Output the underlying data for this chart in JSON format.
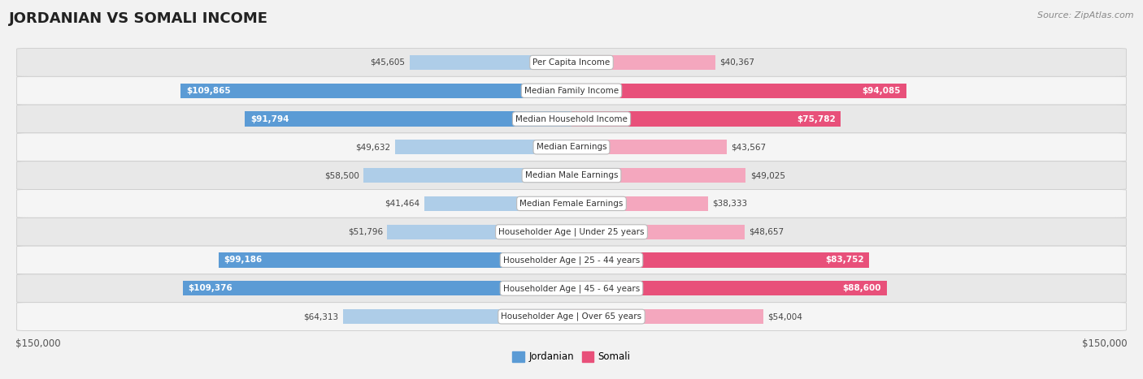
{
  "title": "JORDANIAN VS SOMALI INCOME",
  "source": "Source: ZipAtlas.com",
  "categories": [
    "Per Capita Income",
    "Median Family Income",
    "Median Household Income",
    "Median Earnings",
    "Median Male Earnings",
    "Median Female Earnings",
    "Householder Age | Under 25 years",
    "Householder Age | 25 - 44 years",
    "Householder Age | 45 - 64 years",
    "Householder Age | Over 65 years"
  ],
  "jordanian_values": [
    45605,
    109865,
    91794,
    49632,
    58500,
    41464,
    51796,
    99186,
    109376,
    64313
  ],
  "somali_values": [
    40367,
    94085,
    75782,
    43567,
    49025,
    38333,
    48657,
    83752,
    88600,
    54004
  ],
  "jordanian_labels": [
    "$45,605",
    "$109,865",
    "$91,794",
    "$49,632",
    "$58,500",
    "$41,464",
    "$51,796",
    "$99,186",
    "$109,376",
    "$64,313"
  ],
  "somali_labels": [
    "$40,367",
    "$94,085",
    "$75,782",
    "$43,567",
    "$49,025",
    "$38,333",
    "$48,657",
    "$83,752",
    "$88,600",
    "$54,004"
  ],
  "jordanian_color_large": "#5b9bd5",
  "jordanian_color_small": "#aecde8",
  "somali_color_large": "#e8507a",
  "somali_color_small": "#f4a7be",
  "large_threshold": 70000,
  "bar_height": 0.52,
  "max_value": 150000,
  "background_color": "#f2f2f2",
  "xlabel_left": "$150,000",
  "xlabel_right": "$150,000",
  "legend_jordanian": "Jordanian",
  "legend_somali": "Somali"
}
